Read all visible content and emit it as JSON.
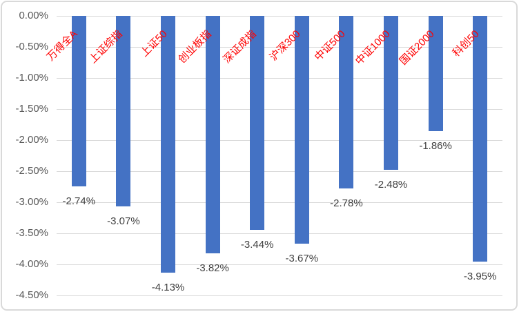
{
  "chart_data": {
    "type": "bar",
    "title": "",
    "categories": [
      "万得全A",
      "上证综指",
      "上证50",
      "创业板指",
      "深证成指",
      "沪深300",
      "中证500",
      "中证1000",
      "国证2000",
      "科创50"
    ],
    "values": [
      -2.74,
      -3.07,
      -4.13,
      -3.82,
      -3.44,
      -3.67,
      -2.78,
      -2.48,
      -1.86,
      -3.95
    ],
    "data_labels": [
      "-2.74%",
      "-3.07%",
      "-4.13%",
      "-3.82%",
      "-3.44%",
      "-3.67%",
      "-2.78%",
      "-2.48%",
      "-1.86%",
      "-3.95%"
    ],
    "y_ticks": [
      "0.00%",
      "-0.50%",
      "-1.00%",
      "-1.50%",
      "-2.00%",
      "-2.50%",
      "-3.00%",
      "-3.50%",
      "-4.00%",
      "-4.50%"
    ],
    "y_tick_values": [
      0,
      -0.5,
      -1.0,
      -1.5,
      -2.0,
      -2.5,
      -3.0,
      -3.5,
      -4.0,
      -4.5
    ],
    "ylim": [
      0,
      -4.5
    ],
    "xlabel": "",
    "ylabel": "",
    "grid": true,
    "legend": "none",
    "colors": {
      "bar": "#4472C4",
      "category_label": "#FF0000",
      "tick_label": "#595959",
      "data_label": "#404040",
      "gridline": "#D9D9D9",
      "border": "#D9D9D9",
      "background": "#FFFFFF"
    }
  }
}
